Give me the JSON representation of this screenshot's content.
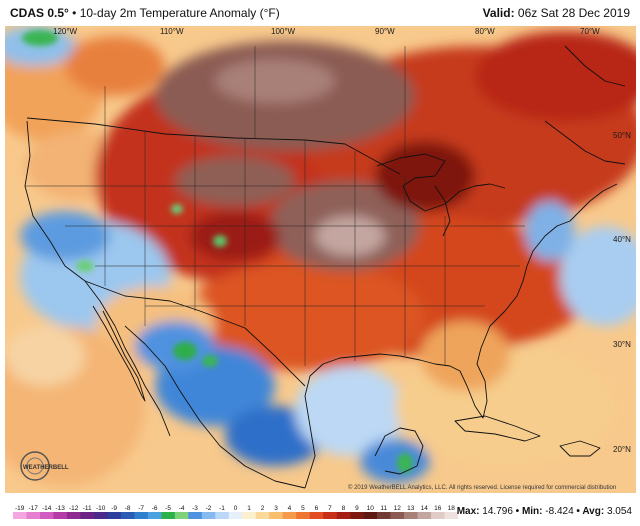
{
  "header": {
    "model": "CDAS 0.5°",
    "description": " • 10-day 2m Temperature Anomaly (°F)",
    "valid_label": "Valid:",
    "valid_value": " 06z Sat 28 Dec 2019"
  },
  "map": {
    "longitude_labels": [
      "120°W",
      "110°W",
      "100°W",
      "90°W",
      "80°W",
      "70°W"
    ],
    "latitude_labels": [
      "50°N",
      "40°N",
      "30°N",
      "20°N"
    ],
    "credit": "© 2019 WeatherBELL Analytics, LLC. All rights reserved. License required for commercial distribution",
    "logo_text": "WEATHERBELL"
  },
  "colorbar": {
    "labels": [
      "-19",
      "-17",
      "-14",
      "-13",
      "-12",
      "-11",
      "-10",
      "-9",
      "-8",
      "-7",
      "-6",
      "-5",
      "-4",
      "-3",
      "-2",
      "-1",
      "0",
      "1",
      "2",
      "3",
      "4",
      "5",
      "6",
      "7",
      "8",
      "9",
      "10",
      "11",
      "12",
      "13",
      "14",
      "16",
      "18"
    ],
    "colors": [
      "#f4a6e0",
      "#e77fd1",
      "#d35ac0",
      "#b43ca7",
      "#8e2a90",
      "#6b2485",
      "#4a2a8a",
      "#2e3e9c",
      "#2a5bb5",
      "#2f7fcf",
      "#4aa3e0",
      "#2bb04a",
      "#7fd27a",
      "#4f92e0",
      "#86b9ee",
      "#b9d8f6",
      "#e6f0fb",
      "#fdf0cf",
      "#fbd99a",
      "#f8bd6d",
      "#f59a4a",
      "#ee7532",
      "#e24e22",
      "#c9301a",
      "#a61d14",
      "#7e1911",
      "#5e1a12",
      "#6f3b32",
      "#8b5a52",
      "#a98078",
      "#c4a6a0",
      "#e0cbc6",
      "#efe1de"
    ]
  },
  "stats": {
    "max_label": "Max:",
    "max_value": " 14.796",
    "min_label": " • Min:",
    "min_value": " -8.424",
    "avg_label": " • Avg:",
    "avg_value": " 3.054"
  }
}
